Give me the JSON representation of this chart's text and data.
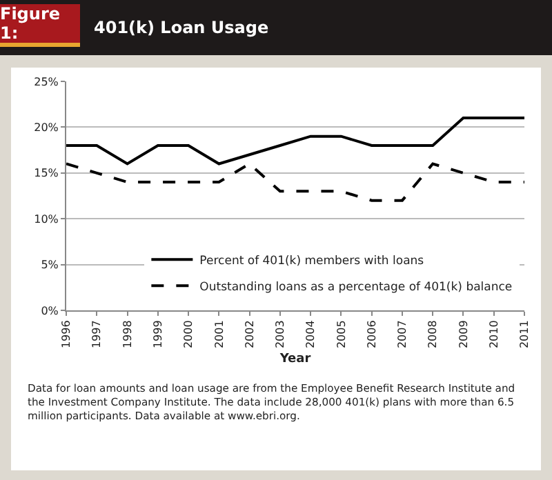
{
  "chart_data": {
    "type": "line",
    "title": "401(k) Loan Usage",
    "xlabel": "Year",
    "annotations": [
      "Figure 1:",
      "Data for loan amounts and loan usage are from the Employee Benefit Research Institute and the Investment Company Institute. The data include 28,000 401(k) plans with more than 6.5 million participants. Data available at www.ebri.org."
    ],
    "categories": [
      "1996",
      "1997",
      "1998",
      "1999",
      "2000",
      "2001",
      "2002",
      "2003",
      "2004",
      "2005",
      "2006",
      "2007",
      "2008",
      "2009",
      "2010",
      "2011"
    ],
    "series": [
      {
        "name": "Percent of 401(k) members with loans",
        "color": "#000000",
        "line_style": "solid",
        "values": [
          18,
          18,
          16,
          18,
          18,
          16,
          17,
          18,
          19,
          19,
          18,
          18,
          18,
          21,
          21,
          21
        ]
      },
      {
        "name": "Outstanding loans as a percentage of 401(k) balance",
        "color": "#000000",
        "line_style": "dashed",
        "values": [
          16,
          15,
          14,
          14,
          14,
          14,
          16,
          13,
          13,
          13,
          12,
          12,
          16,
          15,
          14,
          14
        ]
      }
    ],
    "ylim": [
      0,
      25
    ],
    "yticks": [
      {
        "value": 0,
        "label": "0%"
      },
      {
        "value": 5,
        "label": "5%"
      },
      {
        "value": 10,
        "label": "10%"
      },
      {
        "value": 15,
        "label": "15%"
      },
      {
        "value": 20,
        "label": "20%"
      },
      {
        "value": 25,
        "label": "25%"
      }
    ],
    "grid": "y",
    "legend": "bottom right",
    "marker": "none"
  }
}
